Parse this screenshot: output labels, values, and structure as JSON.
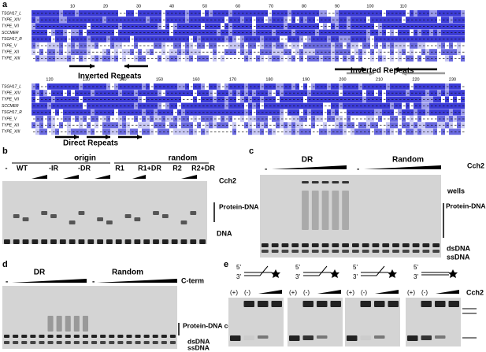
{
  "panel_a": {
    "label": "a",
    "row_labels": [
      "TSGH17_L",
      "TYPE_XIV",
      "TYPE_VII",
      "SCCMER",
      "TSGH17_R",
      "TYPE_V",
      "TYPE_XII",
      "TYPE_XIII"
    ],
    "ruler_top": [
      "10",
      "20",
      "30",
      "40",
      "50",
      "60",
      "70",
      "80",
      "90",
      "100",
      "110"
    ],
    "ruler_bottom": [
      "120",
      "130",
      "140",
      "150",
      "160",
      "170",
      "180",
      "190",
      "200",
      "210",
      "220",
      "230"
    ],
    "annotations": [
      "Inverted Repeats",
      "Inverted Repeats",
      "Direct Repeats"
    ]
  },
  "panel_b": {
    "label": "b",
    "groups": [
      "origin",
      "random"
    ],
    "lanes": [
      "-",
      "WT",
      "-IR",
      "-DR",
      "R1",
      "R1+DR",
      "R2",
      "R2+DR"
    ],
    "titration": "Cch2",
    "complexes": "Protein-DNA complexes",
    "dna": "DNA"
  },
  "panel_c": {
    "label": "c",
    "groups": [
      "DR",
      "Random"
    ],
    "minus": [
      "-",
      "-"
    ],
    "titration": "Cch2",
    "wells": "wells",
    "complexes": "Protein-DNA complexes",
    "dsdna": "dsDNA",
    "ssdna": "ssDNA"
  },
  "panel_d": {
    "label": "d",
    "groups": [
      "DR",
      "Random"
    ],
    "minus": [
      "-",
      "-"
    ],
    "titration": "C-term",
    "complexes": "Protein-DNA complexes",
    "dsdna": "dsDNA",
    "ssdna": "ssDNA"
  },
  "panel_e": {
    "label": "e",
    "ends": [
      "5'",
      "3'"
    ],
    "lanes": [
      "(+)",
      "(-)"
    ],
    "titration": "Cch2"
  }
}
